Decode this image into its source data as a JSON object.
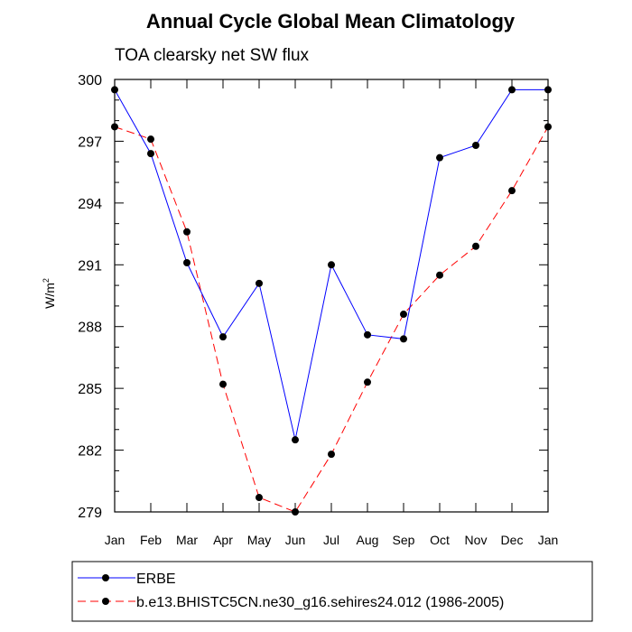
{
  "chart_data": {
    "type": "line",
    "title": "Annual Cycle Global Mean Climatology",
    "subtitle": "TOA clearsky net SW flux",
    "ylabel": "W/m",
    "ylabel_superscript": "2",
    "xlabel": "",
    "categories": [
      "Jan",
      "Feb",
      "Mar",
      "Apr",
      "May",
      "Jun",
      "Jul",
      "Aug",
      "Sep",
      "Oct",
      "Nov",
      "Dec",
      "Jan"
    ],
    "ylim": [
      279,
      300
    ],
    "yticks": [
      "300",
      "297",
      "294",
      "291",
      "288",
      "285",
      "282",
      "279"
    ],
    "legend_position": "bottom",
    "series": [
      {
        "name": "ERBE",
        "color": "#0000ff",
        "style": "solid",
        "values": [
          299.5,
          296.4,
          291.1,
          287.5,
          290.1,
          282.5,
          291.0,
          287.6,
          287.4,
          296.2,
          296.8,
          299.5,
          299.5
        ]
      },
      {
        "name": "b.e13.BHISTC5CN.ne30_g16.sehires24.012 (1986-2005)",
        "color": "#ff0000",
        "style": "dashed",
        "values": [
          297.7,
          297.1,
          292.6,
          285.2,
          279.7,
          279.0,
          281.8,
          285.3,
          288.6,
          290.5,
          291.9,
          294.6,
          297.7
        ]
      }
    ]
  }
}
